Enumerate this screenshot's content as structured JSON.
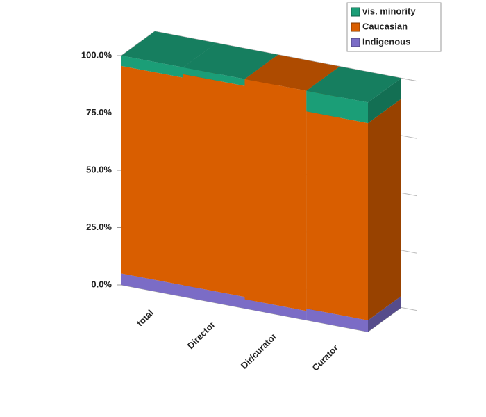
{
  "chart_data": {
    "type": "stacked_bar_3d",
    "categories": [
      "total",
      "Director",
      "Dir/curator",
      "Curator"
    ],
    "series": [
      {
        "name": "Indigenous",
        "color": "#7b6cc6",
        "values": [
          5,
          5,
          4,
          5
        ]
      },
      {
        "name": "Caucasian",
        "color": "#d95e00",
        "values": [
          90.5,
          92,
          96,
          86
        ]
      },
      {
        "name": "vis. minority",
        "color": "#1b9e77",
        "values": [
          4.5,
          3,
          0,
          9
        ]
      }
    ],
    "ylim": [
      0,
      100
    ],
    "yticks": [
      {
        "value": 0,
        "label": "0.0%"
      },
      {
        "value": 25,
        "label": "25.0%"
      },
      {
        "value": 50,
        "label": "50.0%"
      },
      {
        "value": 75,
        "label": "75.0%"
      },
      {
        "value": 100,
        "label": "100.0%"
      }
    ],
    "grid": true,
    "legend": "top-right"
  }
}
